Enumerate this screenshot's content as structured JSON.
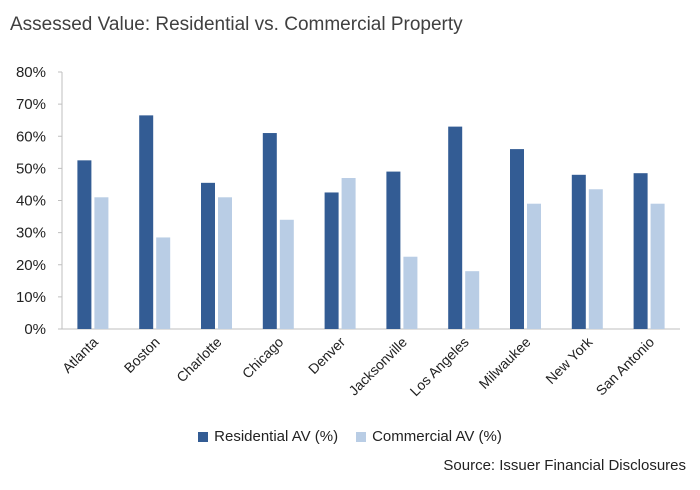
{
  "chart_data": {
    "type": "bar",
    "title": "Assessed Value: Residential vs. Commercial Property",
    "xlabel": "",
    "ylabel": "",
    "categories": [
      "Atlanta",
      "Boston",
      "Charlotte",
      "Chicago",
      "Denver",
      "Jacksonville",
      "Los Angeles",
      "Milwaukee",
      "New York",
      "San Antonio"
    ],
    "series": [
      {
        "name": "Residential AV (%)",
        "color": "#335c94",
        "values": [
          52.5,
          66.5,
          45.5,
          61,
          42.5,
          49,
          63,
          56,
          48,
          48.5
        ]
      },
      {
        "name": "Commercial AV (%)",
        "color": "#b9cde5",
        "values": [
          41,
          28.5,
          41,
          34,
          47,
          22.5,
          18,
          39,
          43.5,
          39
        ]
      }
    ],
    "ylim": [
      0,
      80
    ],
    "yticks": [
      "0%",
      "10%",
      "20%",
      "30%",
      "40%",
      "50%",
      "60%",
      "70%",
      "80%"
    ],
    "grid": false,
    "legend_position": "bottom",
    "source": "Source: Issuer Financial Disclosures"
  }
}
